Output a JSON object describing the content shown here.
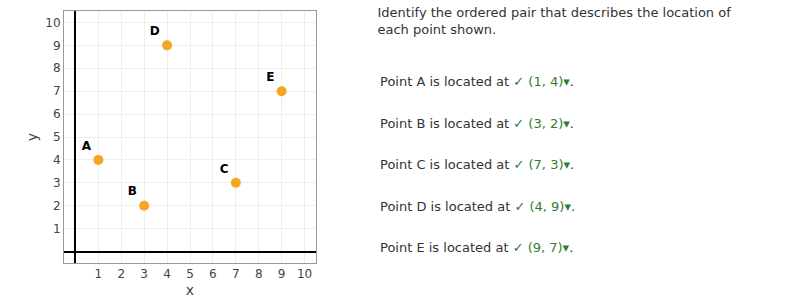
{
  "chart_data": {
    "type": "scatter",
    "title": "Identify the ordered pair that describes the location of\neach point shown.",
    "x": [
      1,
      3,
      7,
      4,
      9
    ],
    "values": [
      4,
      2,
      3,
      9,
      7
    ],
    "labels": [
      "A",
      "B",
      "C",
      "D",
      "E"
    ],
    "color": "#F5A623",
    "xlabel": "x",
    "ylabel": "y",
    "xlim": [
      -0.5,
      10.5
    ],
    "ylim": [
      -0.5,
      10.5
    ],
    "xticks": [
      1,
      2,
      3,
      4,
      5,
      6,
      7,
      8,
      9,
      10
    ],
    "yticks": [
      1,
      2,
      3,
      4,
      5,
      6,
      7,
      8,
      9,
      10
    ],
    "grid": true,
    "annotations": [
      {
        "text": "Point A is located at ",
        "answer": "✓ (1, 4)▾",
        "end": ".",
        "color": "#2e7d32"
      },
      {
        "text": "Point B is located at ",
        "answer": "✓ (3, 2)▾",
        "end": ".",
        "color": "#2e7d32"
      },
      {
        "text": "Point C is located at ",
        "answer": "✓ (7, 3)▾",
        "end": ".",
        "color": "#2e7d32"
      },
      {
        "text": "Point D is located at ",
        "answer": "✓ (4, 9)▾",
        "end": ".",
        "color": "#2e7d32"
      },
      {
        "text": "Point E is located at ",
        "answer": "✓ (9, 7)▾",
        "end": ".",
        "color": "#2e7d32"
      }
    ]
  }
}
